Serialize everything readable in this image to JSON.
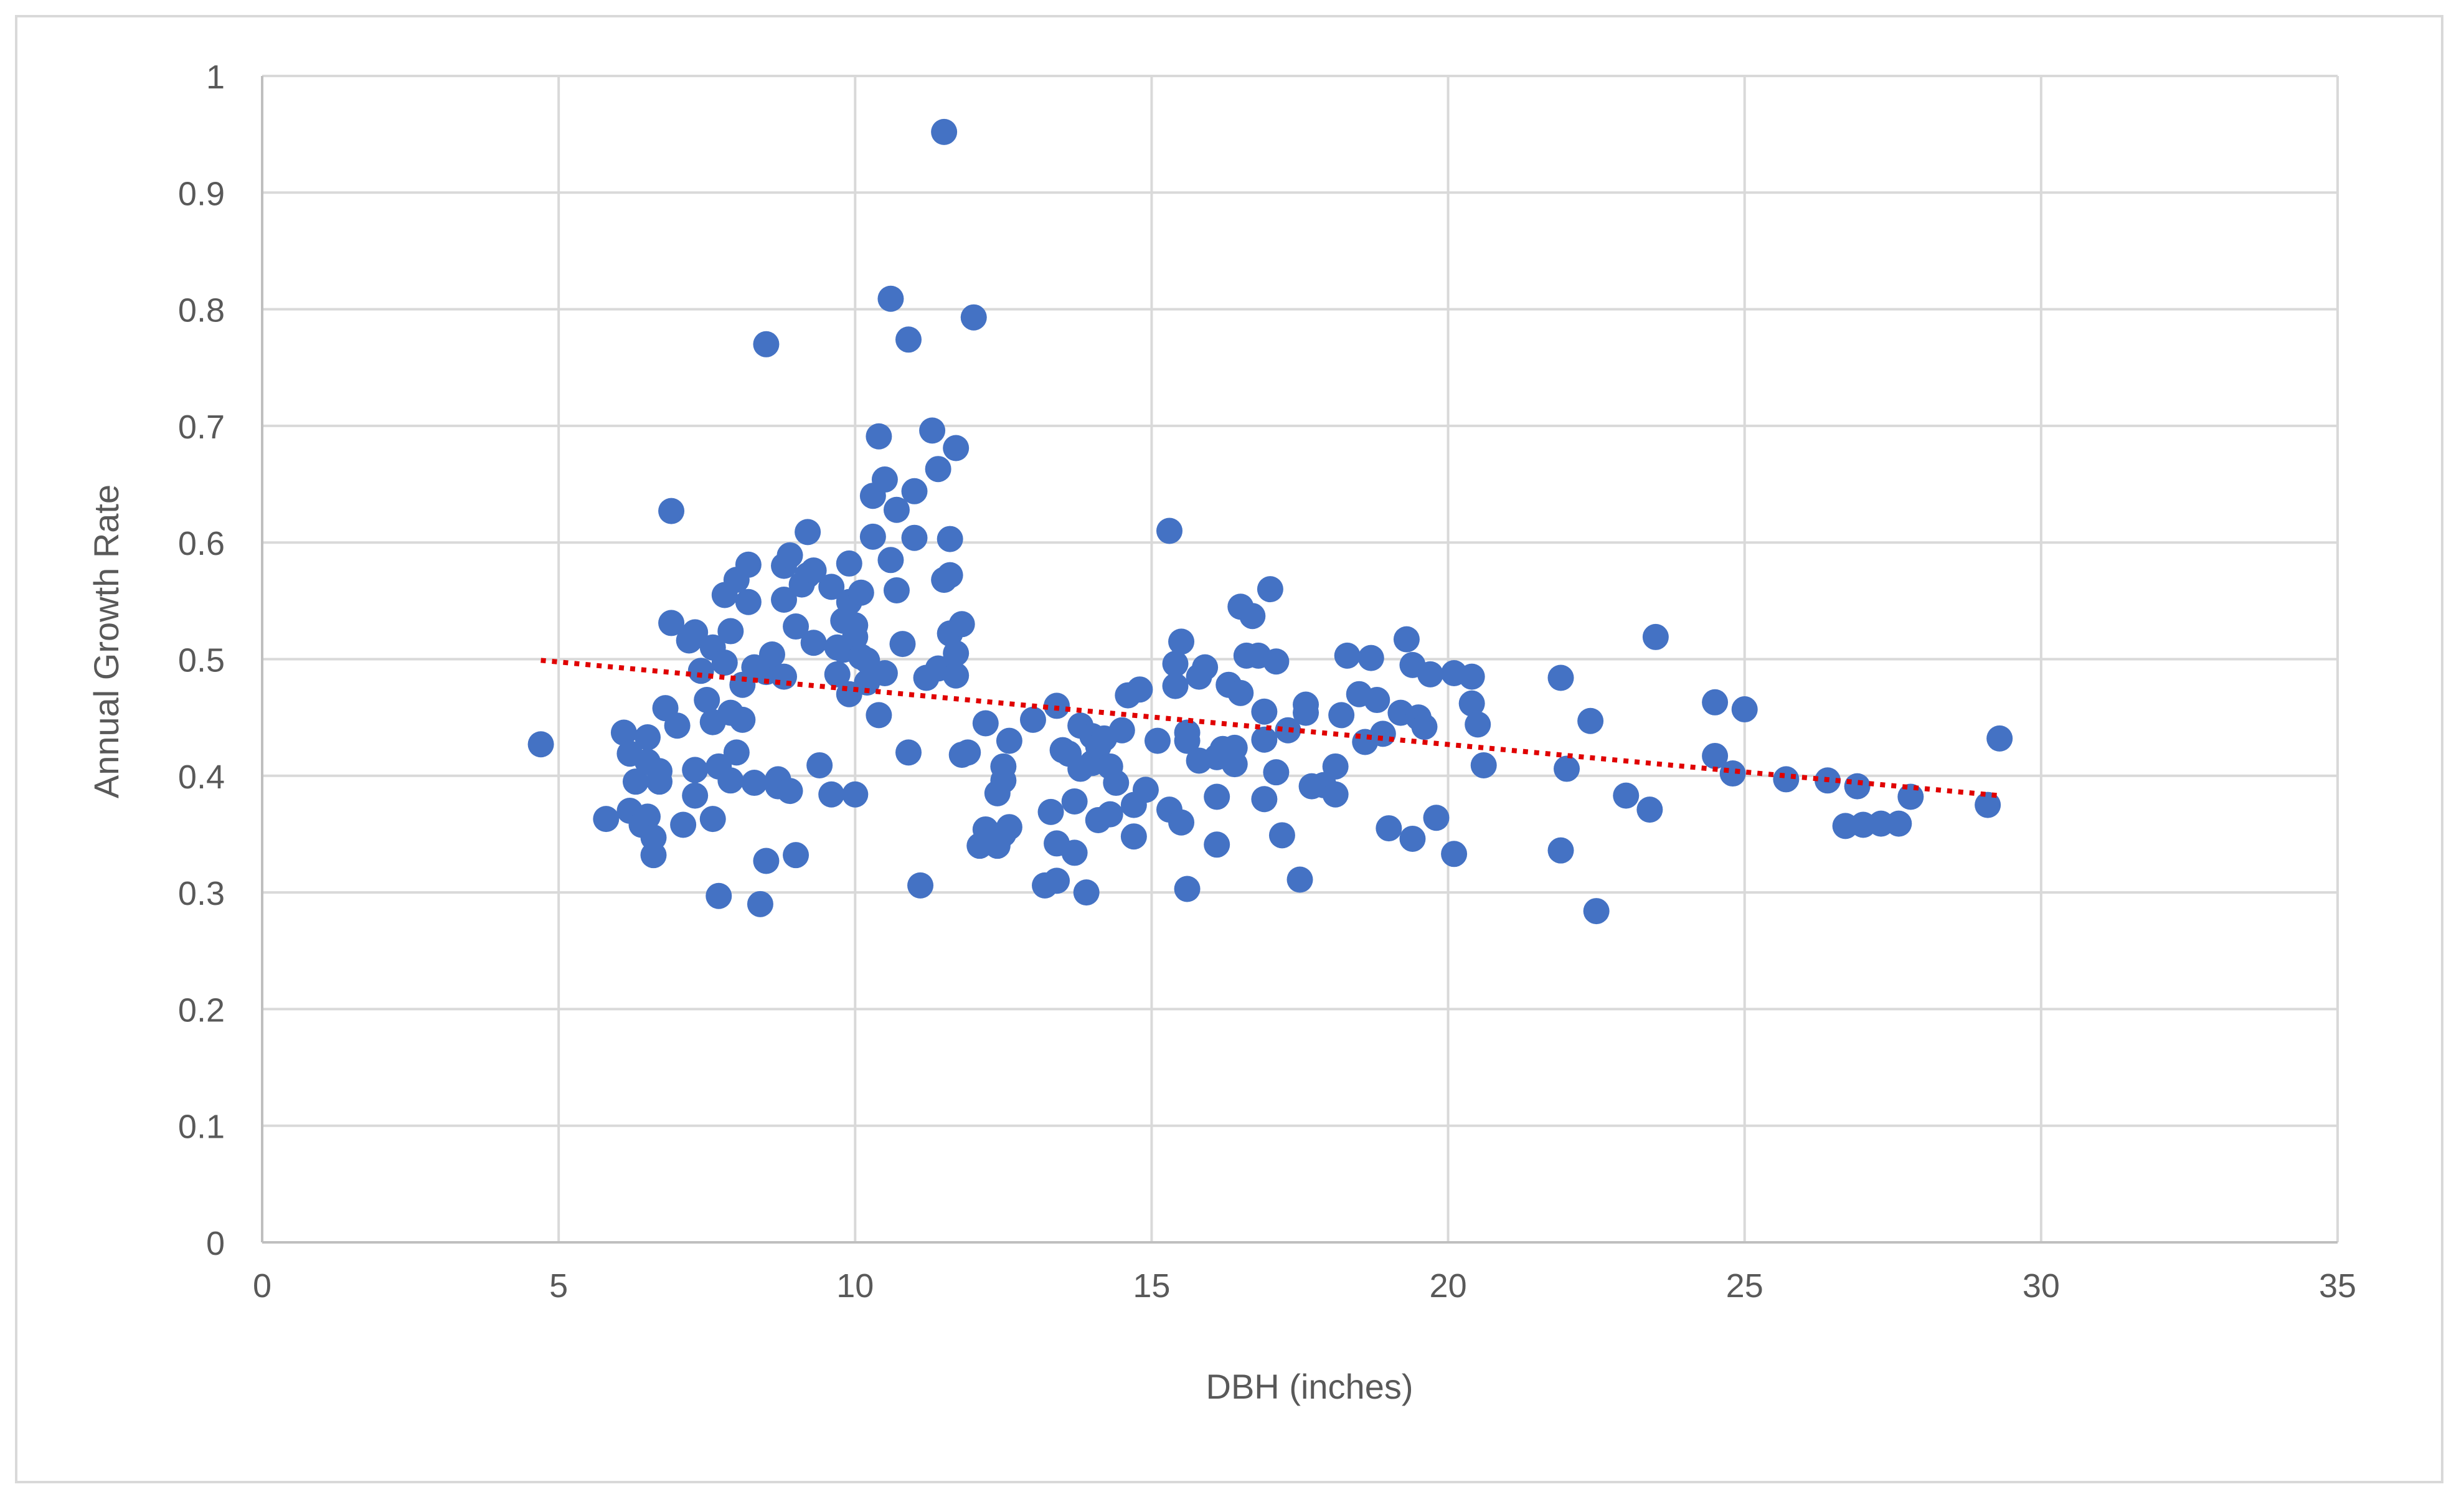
{
  "chart_data": {
    "type": "scatter",
    "title": "",
    "xlabel": "DBH (inches)",
    "ylabel": "Annual Growth Rate",
    "xlim": [
      0,
      35
    ],
    "ylim": [
      0,
      1
    ],
    "x_ticks": [
      "0",
      "5",
      "10",
      "15",
      "20",
      "25",
      "30",
      "35"
    ],
    "y_ticks": [
      "0",
      "0.1",
      "0.2",
      "0.3",
      "0.4",
      "0.5",
      "0.6",
      "0.7",
      "0.8",
      "0.9",
      "1"
    ],
    "grid": true,
    "legend": "none",
    "colors": {
      "points": "#4472C4",
      "trendline": "#E00000",
      "grid": "#d9d9d9",
      "axis": "#bfbfbf",
      "text": "#595959"
    },
    "series": [
      {
        "marker": "circle",
        "points": [
          [
            4.7,
            0.427
          ],
          [
            5.8,
            0.363
          ],
          [
            6.1,
            0.437
          ],
          [
            6.2,
            0.37
          ],
          [
            6.2,
            0.419
          ],
          [
            6.3,
            0.395
          ],
          [
            6.4,
            0.358
          ],
          [
            6.5,
            0.433
          ],
          [
            6.5,
            0.412
          ],
          [
            6.5,
            0.365
          ],
          [
            6.6,
            0.347
          ],
          [
            6.6,
            0.332
          ],
          [
            6.7,
            0.404
          ],
          [
            6.7,
            0.395
          ],
          [
            6.8,
            0.458
          ],
          [
            6.9,
            0.627
          ],
          [
            6.9,
            0.531
          ],
          [
            7.0,
            0.443
          ],
          [
            7.1,
            0.358
          ],
          [
            7.2,
            0.516
          ],
          [
            7.3,
            0.405
          ],
          [
            7.3,
            0.383
          ],
          [
            7.3,
            0.523
          ],
          [
            7.4,
            0.49
          ],
          [
            7.5,
            0.465
          ],
          [
            7.6,
            0.446
          ],
          [
            7.6,
            0.363
          ],
          [
            7.6,
            0.51
          ],
          [
            7.7,
            0.297
          ],
          [
            7.7,
            0.408
          ],
          [
            7.8,
            0.555
          ],
          [
            7.8,
            0.497
          ],
          [
            7.9,
            0.454
          ],
          [
            7.9,
            0.524
          ],
          [
            7.9,
            0.396
          ],
          [
            8.0,
            0.42
          ],
          [
            8.0,
            0.568
          ],
          [
            8.1,
            0.448
          ],
          [
            8.1,
            0.478
          ],
          [
            8.2,
            0.581
          ],
          [
            8.2,
            0.549
          ],
          [
            8.3,
            0.394
          ],
          [
            8.3,
            0.493
          ],
          [
            8.4,
            0.29
          ],
          [
            8.5,
            0.77
          ],
          [
            8.5,
            0.327
          ],
          [
            8.5,
            0.489
          ],
          [
            8.6,
            0.504
          ],
          [
            8.7,
            0.391
          ],
          [
            8.7,
            0.397
          ],
          [
            8.8,
            0.58
          ],
          [
            8.8,
            0.551
          ],
          [
            8.8,
            0.485
          ],
          [
            8.9,
            0.589
          ],
          [
            8.9,
            0.387
          ],
          [
            9.0,
            0.332
          ],
          [
            9.0,
            0.528
          ],
          [
            9.1,
            0.564
          ],
          [
            9.2,
            0.609
          ],
          [
            9.2,
            0.572
          ],
          [
            9.3,
            0.514
          ],
          [
            9.3,
            0.576
          ],
          [
            9.4,
            0.409
          ],
          [
            9.6,
            0.384
          ],
          [
            9.6,
            0.562
          ],
          [
            9.7,
            0.487
          ],
          [
            9.7,
            0.51
          ],
          [
            9.8,
            0.533
          ],
          [
            9.8,
            0.508
          ],
          [
            9.9,
            0.47
          ],
          [
            9.9,
            0.582
          ],
          [
            9.9,
            0.549
          ],
          [
            10.0,
            0.384
          ],
          [
            10.0,
            0.519
          ],
          [
            10.0,
            0.529
          ],
          [
            10.1,
            0.557
          ],
          [
            10.1,
            0.502
          ],
          [
            10.2,
            0.48
          ],
          [
            10.2,
            0.499
          ],
          [
            10.3,
            0.64
          ],
          [
            10.3,
            0.605
          ],
          [
            10.4,
            0.691
          ],
          [
            10.4,
            0.452
          ],
          [
            10.5,
            0.654
          ],
          [
            10.5,
            0.488
          ],
          [
            10.6,
            0.809
          ],
          [
            10.6,
            0.585
          ],
          [
            10.7,
            0.628
          ],
          [
            10.7,
            0.559
          ],
          [
            10.8,
            0.513
          ],
          [
            10.9,
            0.774
          ],
          [
            10.9,
            0.42
          ],
          [
            11.0,
            0.604
          ],
          [
            11.0,
            0.644
          ],
          [
            11.1,
            0.306
          ],
          [
            11.2,
            0.484
          ],
          [
            11.3,
            0.696
          ],
          [
            11.4,
            0.663
          ],
          [
            11.4,
            0.492
          ],
          [
            11.5,
            0.568
          ],
          [
            11.5,
            0.952
          ],
          [
            11.6,
            0.603
          ],
          [
            11.6,
            0.572
          ],
          [
            11.6,
            0.522
          ],
          [
            11.7,
            0.681
          ],
          [
            11.7,
            0.505
          ],
          [
            11.7,
            0.486
          ],
          [
            11.8,
            0.53
          ],
          [
            11.8,
            0.418
          ],
          [
            11.9,
            0.42
          ],
          [
            12.0,
            0.793
          ],
          [
            12.1,
            0.34
          ],
          [
            12.2,
            0.445
          ],
          [
            12.2,
            0.354
          ],
          [
            12.3,
            0.345
          ],
          [
            12.4,
            0.385
          ],
          [
            12.4,
            0.34
          ],
          [
            12.5,
            0.408
          ],
          [
            12.5,
            0.396
          ],
          [
            12.5,
            0.35
          ],
          [
            12.6,
            0.43
          ],
          [
            12.6,
            0.356
          ],
          [
            13.0,
            0.448
          ],
          [
            13.2,
            0.306
          ],
          [
            13.3,
            0.369
          ],
          [
            13.4,
            0.46
          ],
          [
            13.4,
            0.342
          ],
          [
            13.4,
            0.31
          ],
          [
            13.5,
            0.422
          ],
          [
            13.6,
            0.419
          ],
          [
            13.7,
            0.378
          ],
          [
            13.7,
            0.334
          ],
          [
            13.8,
            0.443
          ],
          [
            13.8,
            0.406
          ],
          [
            13.9,
            0.3
          ],
          [
            14.0,
            0.434
          ],
          [
            14.0,
            0.411
          ],
          [
            14.1,
            0.362
          ],
          [
            14.1,
            0.425
          ],
          [
            14.2,
            0.432
          ],
          [
            14.3,
            0.408
          ],
          [
            14.3,
            0.367
          ],
          [
            14.4,
            0.394
          ],
          [
            14.5,
            0.439
          ],
          [
            14.6,
            0.469
          ],
          [
            14.7,
            0.375
          ],
          [
            14.7,
            0.348
          ],
          [
            14.8,
            0.474
          ],
          [
            14.9,
            0.388
          ],
          [
            15.1,
            0.43
          ],
          [
            15.3,
            0.371
          ],
          [
            15.3,
            0.61
          ],
          [
            15.4,
            0.477
          ],
          [
            15.4,
            0.496
          ],
          [
            15.5,
            0.36
          ],
          [
            15.5,
            0.515
          ],
          [
            15.6,
            0.303
          ],
          [
            15.6,
            0.437
          ],
          [
            15.6,
            0.43
          ],
          [
            15.8,
            0.413
          ],
          [
            15.8,
            0.485
          ],
          [
            15.9,
            0.493
          ],
          [
            16.1,
            0.341
          ],
          [
            16.1,
            0.382
          ],
          [
            16.1,
            0.416
          ],
          [
            16.2,
            0.423
          ],
          [
            16.3,
            0.478
          ],
          [
            16.4,
            0.41
          ],
          [
            16.4,
            0.424
          ],
          [
            16.5,
            0.545
          ],
          [
            16.5,
            0.471
          ],
          [
            16.6,
            0.503
          ],
          [
            16.7,
            0.537
          ],
          [
            16.8,
            0.503
          ],
          [
            16.9,
            0.455
          ],
          [
            16.9,
            0.38
          ],
          [
            16.9,
            0.431
          ],
          [
            17.0,
            0.56
          ],
          [
            17.1,
            0.498
          ],
          [
            17.1,
            0.403
          ],
          [
            17.2,
            0.349
          ],
          [
            17.3,
            0.439
          ],
          [
            17.5,
            0.311
          ],
          [
            17.6,
            0.461
          ],
          [
            17.6,
            0.454
          ],
          [
            17.7,
            0.391
          ],
          [
            17.9,
            0.392
          ],
          [
            18.1,
            0.408
          ],
          [
            18.1,
            0.384
          ],
          [
            18.2,
            0.452
          ],
          [
            18.3,
            0.503
          ],
          [
            18.5,
            0.47
          ],
          [
            18.6,
            0.429
          ],
          [
            18.7,
            0.501
          ],
          [
            18.8,
            0.465
          ],
          [
            18.9,
            0.436
          ],
          [
            19.0,
            0.355
          ],
          [
            19.2,
            0.454
          ],
          [
            19.3,
            0.517
          ],
          [
            19.4,
            0.346
          ],
          [
            19.4,
            0.495
          ],
          [
            19.5,
            0.45
          ],
          [
            19.6,
            0.442
          ],
          [
            19.7,
            0.487
          ],
          [
            19.8,
            0.364
          ],
          [
            20.1,
            0.333
          ],
          [
            20.1,
            0.488
          ],
          [
            20.4,
            0.462
          ],
          [
            20.4,
            0.485
          ],
          [
            20.5,
            0.444
          ],
          [
            20.6,
            0.409
          ],
          [
            21.9,
            0.336
          ],
          [
            21.9,
            0.484
          ],
          [
            22.0,
            0.406
          ],
          [
            22.4,
            0.447
          ],
          [
            22.5,
            0.284
          ],
          [
            23.0,
            0.383
          ],
          [
            23.4,
            0.371
          ],
          [
            23.5,
            0.519
          ],
          [
            24.5,
            0.463
          ],
          [
            24.5,
            0.417
          ],
          [
            24.8,
            0.402
          ],
          [
            25.0,
            0.457
          ],
          [
            25.7,
            0.397
          ],
          [
            26.4,
            0.396
          ],
          [
            26.7,
            0.357
          ],
          [
            26.9,
            0.391
          ],
          [
            27.0,
            0.358
          ],
          [
            27.3,
            0.359
          ],
          [
            27.6,
            0.359
          ],
          [
            27.8,
            0.382
          ],
          [
            29.1,
            0.375
          ],
          [
            29.3,
            0.432
          ]
        ]
      }
    ],
    "trendline": {
      "style": "dotted",
      "x": [
        4.7,
        29.3
      ],
      "y": [
        0.499,
        0.383
      ]
    }
  }
}
